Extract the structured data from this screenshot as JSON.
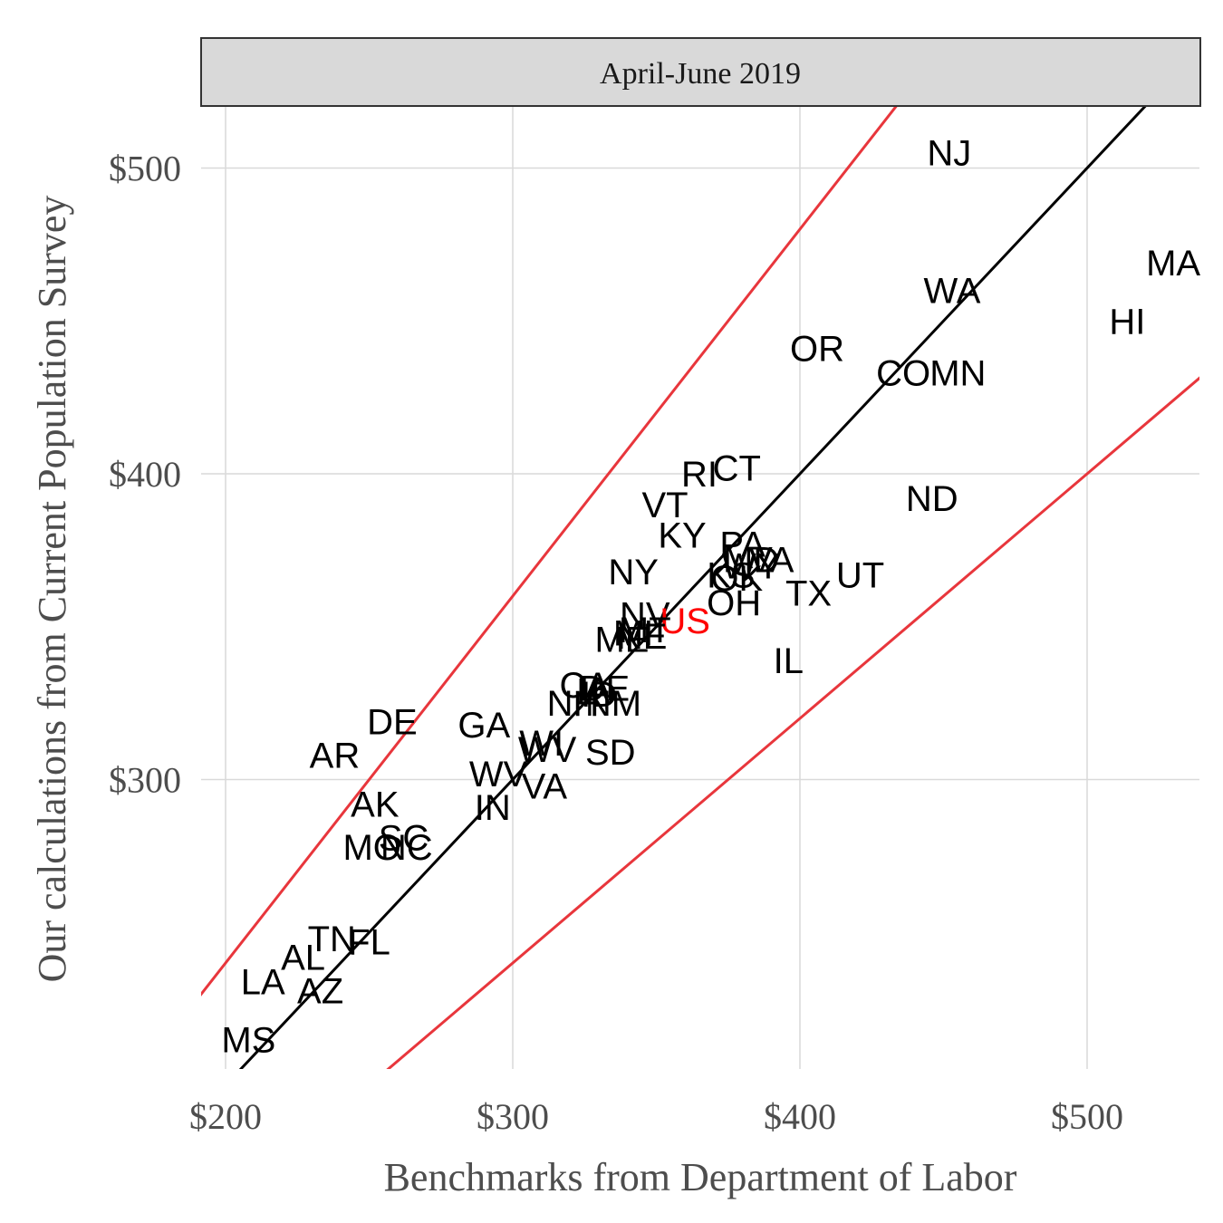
{
  "chart_data": {
    "type": "scatter",
    "title": "",
    "facet_label": "April-June 2019",
    "xlabel": "Benchmarks from Department of Labor",
    "ylabel": "Our calculations from Current Population Survey",
    "xlim": [
      190,
      540
    ],
    "ylim": [
      200,
      520
    ],
    "x_ticks": [
      {
        "value": 200,
        "label": "$200"
      },
      {
        "value": 300,
        "label": "$300"
      },
      {
        "value": 400,
        "label": "$400"
      },
      {
        "value": 500,
        "label": "$500"
      }
    ],
    "y_ticks": [
      {
        "value": 300,
        "label": "$300"
      },
      {
        "value": 400,
        "label": "$400"
      },
      {
        "value": 500,
        "label": "$500"
      }
    ],
    "grid": true,
    "reference_lines": [
      {
        "kind": "identity",
        "slope": 1,
        "color": "#000000"
      },
      {
        "kind": "upper",
        "slope": 1.2,
        "color": "#e8363c"
      },
      {
        "kind": "lower",
        "slope": 0.8,
        "color": "#e8363c"
      }
    ],
    "points": [
      {
        "label": "NJ",
        "x": 452,
        "y": 505
      },
      {
        "label": "MA",
        "x": 530,
        "y": 469
      },
      {
        "label": "WA",
        "x": 453,
        "y": 460
      },
      {
        "label": "HI",
        "x": 514,
        "y": 450
      },
      {
        "label": "OR",
        "x": 406,
        "y": 441
      },
      {
        "label": "CO",
        "x": 436,
        "y": 433
      },
      {
        "label": "MN",
        "x": 455,
        "y": 433
      },
      {
        "label": "RI",
        "x": 365,
        "y": 400
      },
      {
        "label": "CT",
        "x": 378,
        "y": 402
      },
      {
        "label": "ND",
        "x": 446,
        "y": 392
      },
      {
        "label": "VT",
        "x": 353,
        "y": 390
      },
      {
        "label": "KY",
        "x": 359,
        "y": 380
      },
      {
        "label": "PA",
        "x": 380,
        "y": 377
      },
      {
        "label": "MD",
        "x": 383,
        "y": 372
      },
      {
        "label": "WY",
        "x": 383,
        "y": 370
      },
      {
        "label": "VA",
        "x": 390,
        "y": 372
      },
      {
        "label": "UT",
        "x": 421,
        "y": 367
      },
      {
        "label": "NY",
        "x": 342,
        "y": 368
      },
      {
        "label": "KS",
        "x": 376,
        "y": 367
      },
      {
        "label": "OK",
        "x": 378,
        "y": 366
      },
      {
        "label": "TX",
        "x": 403,
        "y": 361
      },
      {
        "label": "OH",
        "x": 377,
        "y": 358
      },
      {
        "label": "NV",
        "x": 346,
        "y": 354
      },
      {
        "label": "US",
        "x": 360,
        "y": 352
      },
      {
        "label": "ME",
        "x": 338,
        "y": 346
      },
      {
        "label": "MI",
        "x": 342,
        "y": 348
      },
      {
        "label": "NE",
        "x": 345,
        "y": 347
      },
      {
        "label": "MT",
        "x": 346,
        "y": 349
      },
      {
        "label": "IL",
        "x": 396,
        "y": 339
      },
      {
        "label": "CA",
        "x": 325,
        "y": 331
      },
      {
        "label": "IA",
        "x": 328,
        "y": 329
      },
      {
        "label": "ID",
        "x": 330,
        "y": 328
      },
      {
        "label": "DE",
        "x": 332,
        "y": 330
      },
      {
        "label": "NH",
        "x": 321,
        "y": 325
      },
      {
        "label": "NM",
        "x": 335,
        "y": 325
      },
      {
        "label": "DE",
        "x": 258,
        "y": 319
      },
      {
        "label": "GA",
        "x": 290,
        "y": 318
      },
      {
        "label": "WI",
        "x": 310,
        "y": 312
      },
      {
        "label": "WV",
        "x": 312,
        "y": 310
      },
      {
        "label": "SD",
        "x": 334,
        "y": 309
      },
      {
        "label": "AR",
        "x": 238,
        "y": 308
      },
      {
        "label": "WV",
        "x": 295,
        "y": 302
      },
      {
        "label": "VA",
        "x": 311,
        "y": 298
      },
      {
        "label": "AK",
        "x": 252,
        "y": 292
      },
      {
        "label": "IN",
        "x": 293,
        "y": 291
      },
      {
        "label": "SC",
        "x": 262,
        "y": 281
      },
      {
        "label": "MO",
        "x": 251,
        "y": 278
      },
      {
        "label": "NC",
        "x": 263,
        "y": 278
      },
      {
        "label": "TN",
        "x": 237,
        "y": 248
      },
      {
        "label": "FL",
        "x": 250,
        "y": 247
      },
      {
        "label": "AL",
        "x": 227,
        "y": 242
      },
      {
        "label": "LA",
        "x": 213,
        "y": 234
      },
      {
        "label": "AZ",
        "x": 233,
        "y": 231
      },
      {
        "label": "MS",
        "x": 208,
        "y": 215
      }
    ],
    "highlight": {
      "label": "US",
      "color": "#ff0000"
    },
    "point_color": "#000000"
  }
}
